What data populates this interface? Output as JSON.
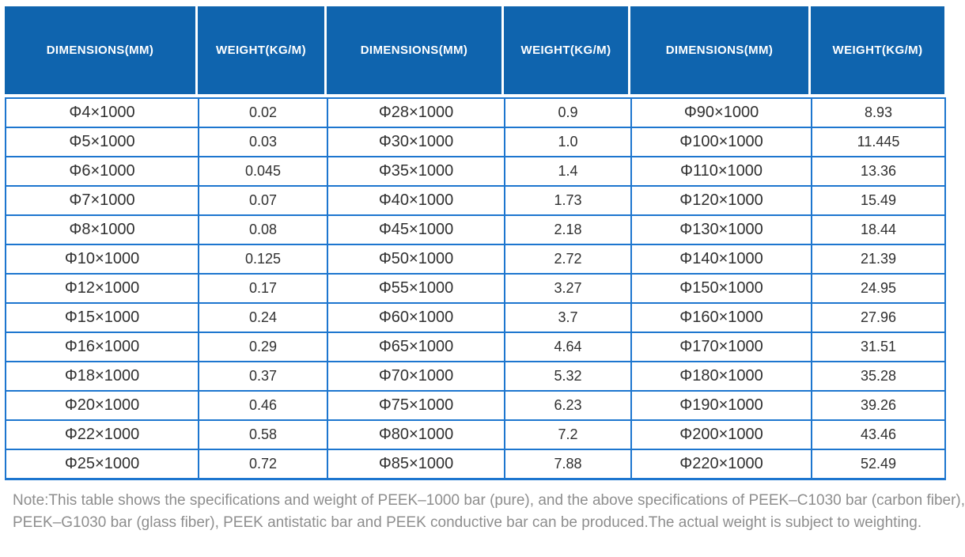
{
  "table": {
    "header": {
      "columns": [
        "DIMENSIONS(MM)",
        "WEIGHT(KG/M)",
        "DIMENSIONS(MM)",
        "WEIGHT(KG/M)",
        "DIMENSIONS(MM)",
        "WEIGHT(KG/M)"
      ]
    },
    "rows": [
      [
        "Φ4×1000",
        "0.02",
        "Φ28×1000",
        "0.9",
        "Φ90×1000",
        "8.93"
      ],
      [
        "Φ5×1000",
        "0.03",
        "Φ30×1000",
        "1.0",
        "Φ100×1000",
        "11.445"
      ],
      [
        "Φ6×1000",
        "0.045",
        "Φ35×1000",
        "1.4",
        "Φ110×1000",
        "13.36"
      ],
      [
        "Φ7×1000",
        "0.07",
        "Φ40×1000",
        "1.73",
        "Φ120×1000",
        "15.49"
      ],
      [
        "Φ8×1000",
        "0.08",
        "Φ45×1000",
        "2.18",
        "Φ130×1000",
        "18.44"
      ],
      [
        "Φ10×1000",
        "0.125",
        "Φ50×1000",
        "2.72",
        "Φ140×1000",
        "21.39"
      ],
      [
        "Φ12×1000",
        "0.17",
        "Φ55×1000",
        "3.27",
        "Φ150×1000",
        "24.95"
      ],
      [
        "Φ15×1000",
        "0.24",
        "Φ60×1000",
        "3.7",
        "Φ160×1000",
        "27.96"
      ],
      [
        "Φ16×1000",
        "0.29",
        "Φ65×1000",
        "4.64",
        "Φ170×1000",
        "31.51"
      ],
      [
        "Φ18×1000",
        "0.37",
        "Φ70×1000",
        "5.32",
        "Φ180×1000",
        "35.28"
      ],
      [
        "Φ20×1000",
        "0.46",
        "Φ75×1000",
        "6.23",
        "Φ190×1000",
        "39.26"
      ],
      [
        "Φ22×1000",
        "0.58",
        "Φ80×1000",
        "7.2",
        "Φ200×1000",
        "43.46"
      ],
      [
        "Φ25×1000",
        "0.72",
        "Φ85×1000",
        "7.88",
        "Φ220×1000",
        "52.49"
      ]
    ]
  },
  "note": {
    "lines": [
      "Note:This table shows the specifications and weight of PEEK–1000 bar (pure), and the above specifications of PEEK–C1030 bar (carbon fiber),",
      "PEEK–G1030 bar (glass fiber), PEEK antistatic bar and PEEK conductive bar can be produced.The actual weight is subject to weighting."
    ]
  },
  "colors": {
    "header_background": "#0f64ae",
    "grid_border": "#1d76cf",
    "cell_text": "#303030",
    "note_text": "#8e8e8e"
  }
}
